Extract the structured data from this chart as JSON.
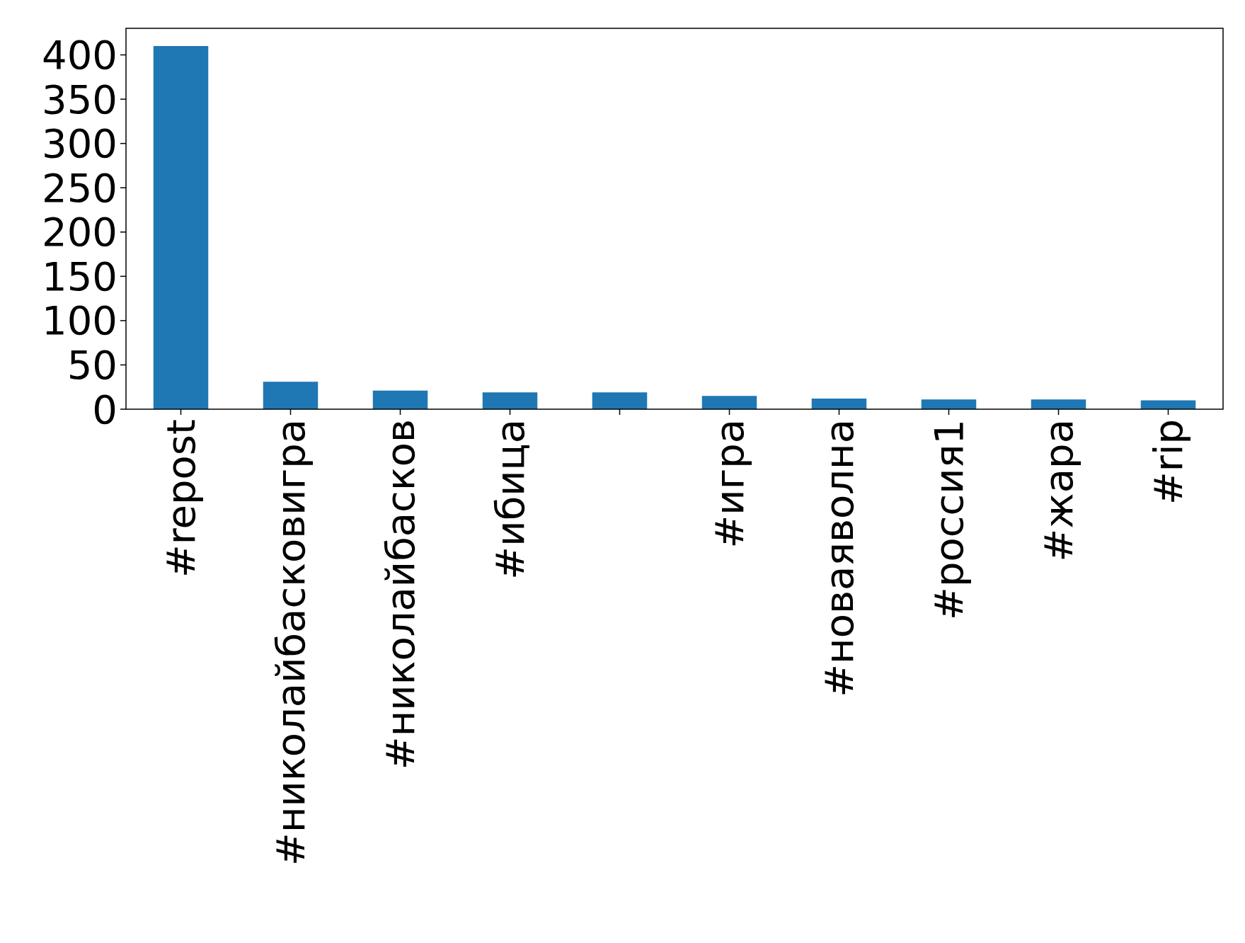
{
  "chart_data": {
    "type": "bar",
    "categories": [
      "#repost",
      "#николайбасковигра",
      "#николайбасков",
      "#ибица",
      null,
      "#игра",
      "#новаяволна",
      "#россия1",
      "#жара",
      "#rip"
    ],
    "values": [
      410,
      31,
      21,
      19,
      19,
      15,
      12,
      11,
      11,
      10
    ],
    "color": "#1f77b4",
    "ylim": [
      0,
      430
    ],
    "yticks": [
      0,
      50,
      100,
      150,
      200,
      250,
      300,
      350,
      400
    ],
    "grid": false
  }
}
